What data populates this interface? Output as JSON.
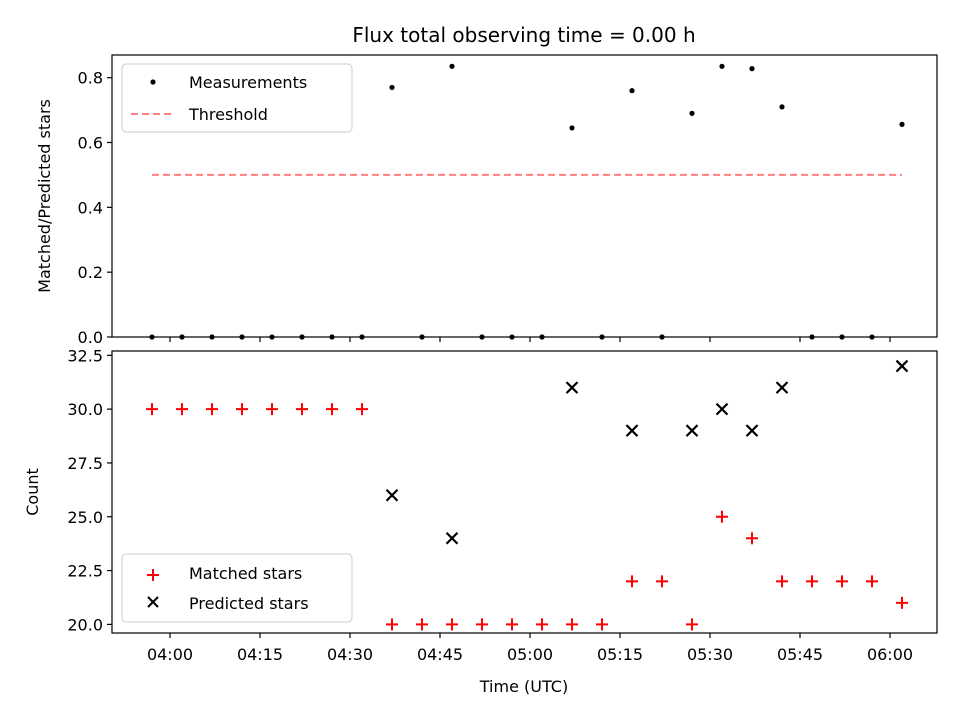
{
  "chart_data": [
    {
      "type": "scatter",
      "title": "Flux total observing time = 0.00 h",
      "xlabel": "",
      "ylabel": "Matched/Predicted stars",
      "ylim": [
        0.0,
        0.87
      ],
      "yticks": [
        "0.0",
        "0.2",
        "0.4",
        "0.6",
        "0.8"
      ],
      "legend_position": "upper-left",
      "legend": {
        "measurements": "Measurements",
        "threshold": "Threshold"
      },
      "threshold": {
        "value": 0.5,
        "x_start": "03:57",
        "x_end": "06:02",
        "color": "#ff7f7f"
      },
      "series": [
        {
          "name": "Measurements",
          "color": "#000000",
          "points": [
            [
              "03:57",
              0.0
            ],
            [
              "04:02",
              0.0
            ],
            [
              "04:07",
              0.0
            ],
            [
              "04:12",
              0.0
            ],
            [
              "04:17",
              0.0
            ],
            [
              "04:22",
              0.0
            ],
            [
              "04:27",
              0.0
            ],
            [
              "04:32",
              0.0
            ],
            [
              "04:37",
              0.77
            ],
            [
              "04:42",
              0.0
            ],
            [
              "04:47",
              0.835
            ],
            [
              "04:52",
              0.0
            ],
            [
              "04:57",
              0.0
            ],
            [
              "05:02",
              0.0
            ],
            [
              "05:07",
              0.645
            ],
            [
              "05:12",
              0.0
            ],
            [
              "05:17",
              0.76
            ],
            [
              "05:22",
              0.0
            ],
            [
              "05:27",
              0.69
            ],
            [
              "05:32",
              0.835
            ],
            [
              "05:37",
              0.828
            ],
            [
              "05:42",
              0.71
            ],
            [
              "05:47",
              0.0
            ],
            [
              "05:52",
              0.0
            ],
            [
              "05:57",
              0.0
            ],
            [
              "06:02",
              0.656
            ]
          ]
        }
      ]
    },
    {
      "type": "scatter",
      "title": "",
      "xlabel": "Time (UTC)",
      "ylabel": "Count",
      "ylim": [
        19.6,
        32.7
      ],
      "yticks": [
        "20.0",
        "22.5",
        "25.0",
        "27.5",
        "30.0",
        "32.5"
      ],
      "xticks": [
        "04:00",
        "04:15",
        "04:30",
        "04:45",
        "05:00",
        "05:15",
        "05:30",
        "05:45",
        "06:00"
      ],
      "legend_position": "lower-left",
      "legend": {
        "matched": "Matched stars",
        "predicted": "Predicted stars"
      },
      "series": [
        {
          "name": "Matched stars",
          "marker": "plus",
          "color": "#ff0000",
          "points": [
            [
              "03:57",
              30
            ],
            [
              "04:02",
              30
            ],
            [
              "04:07",
              30
            ],
            [
              "04:12",
              30
            ],
            [
              "04:17",
              30
            ],
            [
              "04:22",
              30
            ],
            [
              "04:27",
              30
            ],
            [
              "04:32",
              30
            ],
            [
              "04:37",
              20
            ],
            [
              "04:42",
              20
            ],
            [
              "04:47",
              20
            ],
            [
              "04:52",
              20
            ],
            [
              "04:57",
              20
            ],
            [
              "05:02",
              20
            ],
            [
              "05:07",
              20
            ],
            [
              "05:12",
              20
            ],
            [
              "05:17",
              22
            ],
            [
              "05:22",
              22
            ],
            [
              "05:27",
              20
            ],
            [
              "05:32",
              25
            ],
            [
              "05:37",
              24
            ],
            [
              "05:42",
              22
            ],
            [
              "05:47",
              22
            ],
            [
              "05:52",
              22
            ],
            [
              "05:57",
              22
            ],
            [
              "06:02",
              21
            ]
          ]
        },
        {
          "name": "Predicted stars",
          "marker": "x",
          "color": "#000000",
          "points": [
            [
              "04:37",
              26
            ],
            [
              "04:47",
              24
            ],
            [
              "05:07",
              31
            ],
            [
              "05:17",
              29
            ],
            [
              "05:27",
              29
            ],
            [
              "05:32",
              30
            ],
            [
              "05:37",
              29
            ],
            [
              "05:42",
              31
            ],
            [
              "06:02",
              32
            ]
          ]
        }
      ]
    }
  ]
}
